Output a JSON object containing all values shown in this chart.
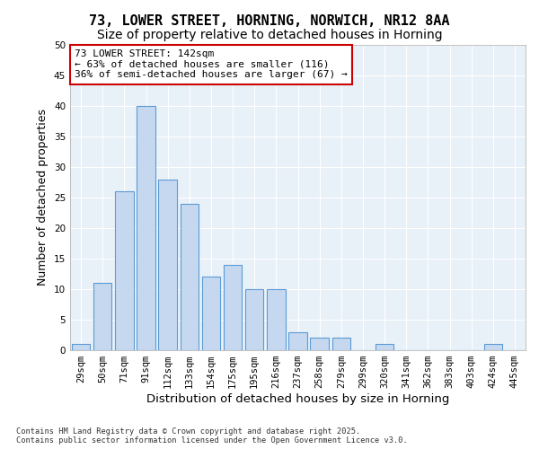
{
  "title1": "73, LOWER STREET, HORNING, NORWICH, NR12 8AA",
  "title2": "Size of property relative to detached houses in Horning",
  "xlabel": "Distribution of detached houses by size in Horning",
  "ylabel": "Number of detached properties",
  "categories": [
    "29sqm",
    "50sqm",
    "71sqm",
    "91sqm",
    "112sqm",
    "133sqm",
    "154sqm",
    "175sqm",
    "195sqm",
    "216sqm",
    "237sqm",
    "258sqm",
    "279sqm",
    "299sqm",
    "320sqm",
    "341sqm",
    "362sqm",
    "383sqm",
    "403sqm",
    "424sqm",
    "445sqm"
  ],
  "values": [
    1,
    11,
    26,
    40,
    28,
    24,
    12,
    14,
    10,
    10,
    3,
    2,
    2,
    0,
    1,
    0,
    0,
    0,
    0,
    1,
    0
  ],
  "bar_color": "#c5d8f0",
  "bar_edge_color": "#5b9bd5",
  "annotation_text": "73 LOWER STREET: 142sqm\n← 63% of detached houses are smaller (116)\n36% of semi-detached houses are larger (67) →",
  "annotation_box_color": "#ffffff",
  "annotation_box_edge": "#cc0000",
  "ylim": [
    0,
    50
  ],
  "yticks": [
    0,
    5,
    10,
    15,
    20,
    25,
    30,
    35,
    40,
    45,
    50
  ],
  "bg_color": "#e8f0f8",
  "footer": "Contains HM Land Registry data © Crown copyright and database right 2025.\nContains public sector information licensed under the Open Government Licence v3.0.",
  "title1_fontsize": 11,
  "title2_fontsize": 10,
  "axis_label_fontsize": 9,
  "tick_fontsize": 7.5,
  "annotation_fontsize": 8.0
}
